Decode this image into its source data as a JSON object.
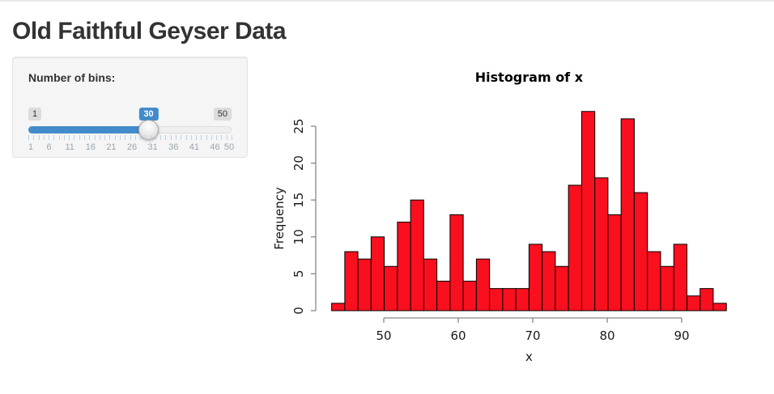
{
  "header": {
    "title": "Old Faithful Geyser Data"
  },
  "controls": {
    "bins": {
      "label": "Number of bins:",
      "min": 1,
      "max": 50,
      "value": 30,
      "min_label": "1",
      "max_label": "50",
      "value_label": "30",
      "grid_labels": [
        "1",
        "6",
        "11",
        "16",
        "21",
        "26",
        "31",
        "36",
        "41",
        "46",
        "50"
      ],
      "accent_color": "#428bca"
    }
  },
  "chart_data": {
    "type": "bar",
    "title": "Histogram of x",
    "xlabel": "x",
    "ylabel": "Frequency",
    "bin_start": 43,
    "bin_end": 96,
    "bin_count": 30,
    "counts": [
      1,
      8,
      7,
      10,
      6,
      12,
      15,
      7,
      4,
      13,
      4,
      7,
      3,
      3,
      3,
      9,
      8,
      6,
      17,
      27,
      18,
      13,
      26,
      16,
      8,
      6,
      9,
      2,
      3,
      1
    ],
    "x_ticks": [
      50,
      60,
      70,
      80,
      90
    ],
    "y_ticks": [
      0,
      5,
      10,
      15,
      20,
      25
    ],
    "xlim": [
      43,
      96
    ],
    "ylim": [
      0,
      27
    ],
    "bar_fill": "#fa0f1e",
    "bar_stroke": "#000000",
    "axis_color": "#888888",
    "text_color": "#1a1a1a",
    "legend": "none",
    "grid": false
  }
}
